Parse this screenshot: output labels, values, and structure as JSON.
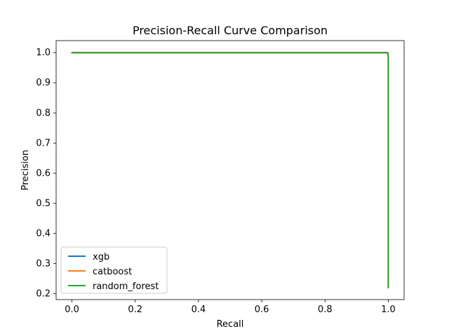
{
  "chart_data": {
    "type": "line",
    "title": "Precision-Recall Curve Comparison",
    "xlabel": "Recall",
    "ylabel": "Precision",
    "xlim": [
      -0.05,
      1.05
    ],
    "ylim": [
      0.18,
      1.04
    ],
    "xticks": [
      0.0,
      0.2,
      0.4,
      0.6,
      0.8,
      1.0
    ],
    "xtick_labels": [
      "0.0",
      "0.2",
      "0.4",
      "0.6",
      "0.8",
      "1.0"
    ],
    "yticks": [
      0.2,
      0.3,
      0.4,
      0.5,
      0.6,
      0.7,
      0.8,
      0.9,
      1.0
    ],
    "ytick_labels": [
      "0.2",
      "0.3",
      "0.4",
      "0.5",
      "0.6",
      "0.7",
      "0.8",
      "0.9",
      "1.0"
    ],
    "grid": false,
    "legend": "lower-left",
    "series": [
      {
        "name": "xgb",
        "color": "#1f77b4",
        "x": [
          0.0,
          0.998,
          1.0,
          1.0
        ],
        "y": [
          1.0,
          1.0,
          0.99,
          0.22
        ]
      },
      {
        "name": "catboost",
        "color": "#ff7f0e",
        "x": [
          0.0,
          0.998,
          1.0,
          1.0
        ],
        "y": [
          1.0,
          1.0,
          0.99,
          0.22
        ]
      },
      {
        "name": "random_forest",
        "color": "#2ca02c",
        "x": [
          0.0,
          0.998,
          1.0,
          1.0
        ],
        "y": [
          1.0,
          1.0,
          0.99,
          0.22
        ]
      }
    ]
  }
}
